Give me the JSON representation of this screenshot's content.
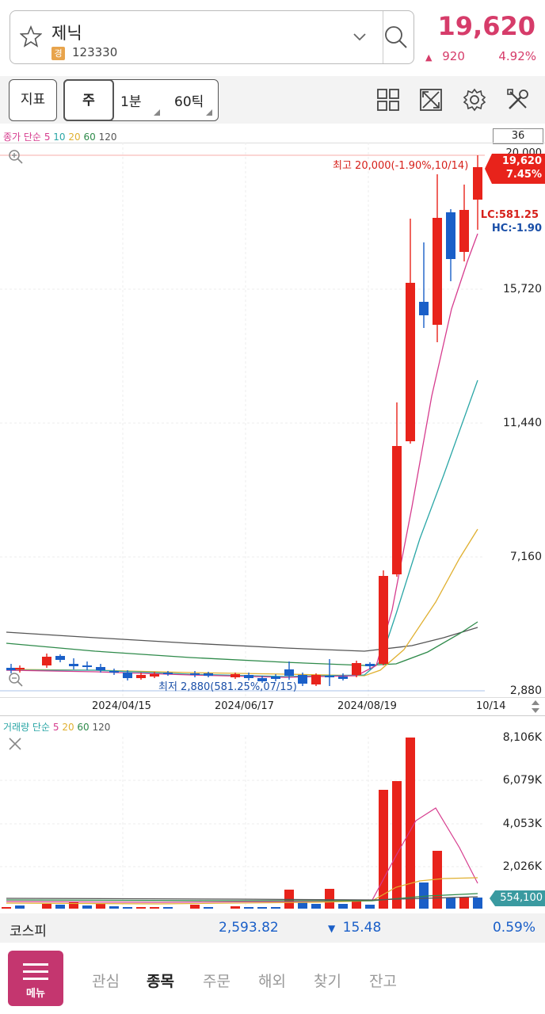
{
  "header": {
    "stock_name": "제닉",
    "badge": "경",
    "stock_code": "123330",
    "price": "19,620",
    "change": "920",
    "change_pct": "4.92%",
    "star_icon": "star-outline-icon",
    "dropdown_icon": "chevron-down-icon",
    "search_icon": "search-icon"
  },
  "toolbar": {
    "indicator_label": "지표",
    "period_week": "주",
    "period_1min": "1분",
    "period_60tick": "60틱",
    "count_box": "36",
    "icons": [
      "layout-grid-icon",
      "fullscreen-icon",
      "gear-icon",
      "tools-icon"
    ]
  },
  "price_chart": {
    "legend_title": "종가 단순",
    "legend_periods": [
      "5",
      "10",
      "20",
      "60",
      "120"
    ],
    "y_ticks": [
      "20,000",
      "15,720",
      "11,440",
      "7,160",
      "2,880"
    ],
    "x_ticks": [
      "2024/04/15",
      "2024/06/17",
      "2024/08/19",
      "10/14"
    ],
    "high_annotation": "최고 20,000(-1.90%,10/14)",
    "low_annotation": "최저 2,880(581.25%,07/15)",
    "current_price_tag": "19,620",
    "current_pct_tag": "7.45%",
    "lc": "LC:581.25",
    "hc": "HC:-1.90",
    "colors": {
      "up": "#e8231b",
      "down": "#1a5fc8",
      "ma5": "#d63c8e",
      "ma10": "#2aa6a6",
      "ma20": "#e0b030",
      "ma60": "#2e8a4a",
      "ma120": "#555555"
    }
  },
  "volume_chart": {
    "legend_title": "거래량 단순",
    "legend_periods": [
      "5",
      "20",
      "60",
      "120"
    ],
    "y_ticks": [
      "8,106K",
      "6,079K",
      "4,053K",
      "2,026K"
    ],
    "current_tag": "554,100"
  },
  "market": {
    "name": "코스피",
    "value": "2,593.82",
    "change": "15.48",
    "change_pct": "0.59%"
  },
  "nav": {
    "menu_label": "메뉴",
    "items": [
      "관심",
      "종목",
      "주문",
      "해외",
      "찾기",
      "잔고"
    ],
    "active_index": 1
  }
}
